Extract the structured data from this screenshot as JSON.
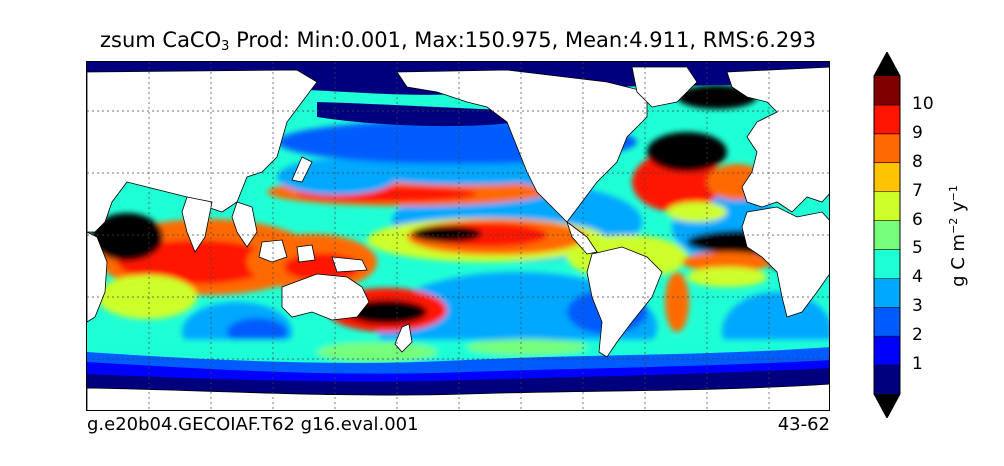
{
  "title": {
    "prefix": "zsum CaCO",
    "subscript": "3",
    "rest": " Prod: Min:0.001, Max:150.975, Mean:4.911, RMS:6.293"
  },
  "footer": {
    "left": "g.e20b04.GECOIAF.T62 g16.eval.001",
    "right": "43-62"
  },
  "colorbar": {
    "label_prefix": "g C m",
    "label_exp1": "−2",
    "label_mid": " y",
    "label_exp2": "−1",
    "ticks": [
      "1",
      "2",
      "3",
      "4",
      "5",
      "6",
      "7",
      "8",
      "9",
      "10"
    ],
    "colors": [
      "#00007f",
      "#0000ff",
      "#005cff",
      "#00a8ff",
      "#1fffd6",
      "#76ff7a",
      "#cdff2a",
      "#ffc400",
      "#ff6a00",
      "#ff1500",
      "#800000"
    ],
    "over_color": "#000000",
    "under_color": "#000000"
  },
  "map": {
    "ocean_colors": {
      "deep": "#00007f",
      "low": "#005cff",
      "mid": "#00a8ff",
      "cyan": "#1fffd6",
      "green": "#76ff7a",
      "yellow": "#cdff2a",
      "orange": "#ff6a00",
      "red": "#ff1500",
      "high": "#000000"
    },
    "land_color": "#ffffff"
  }
}
